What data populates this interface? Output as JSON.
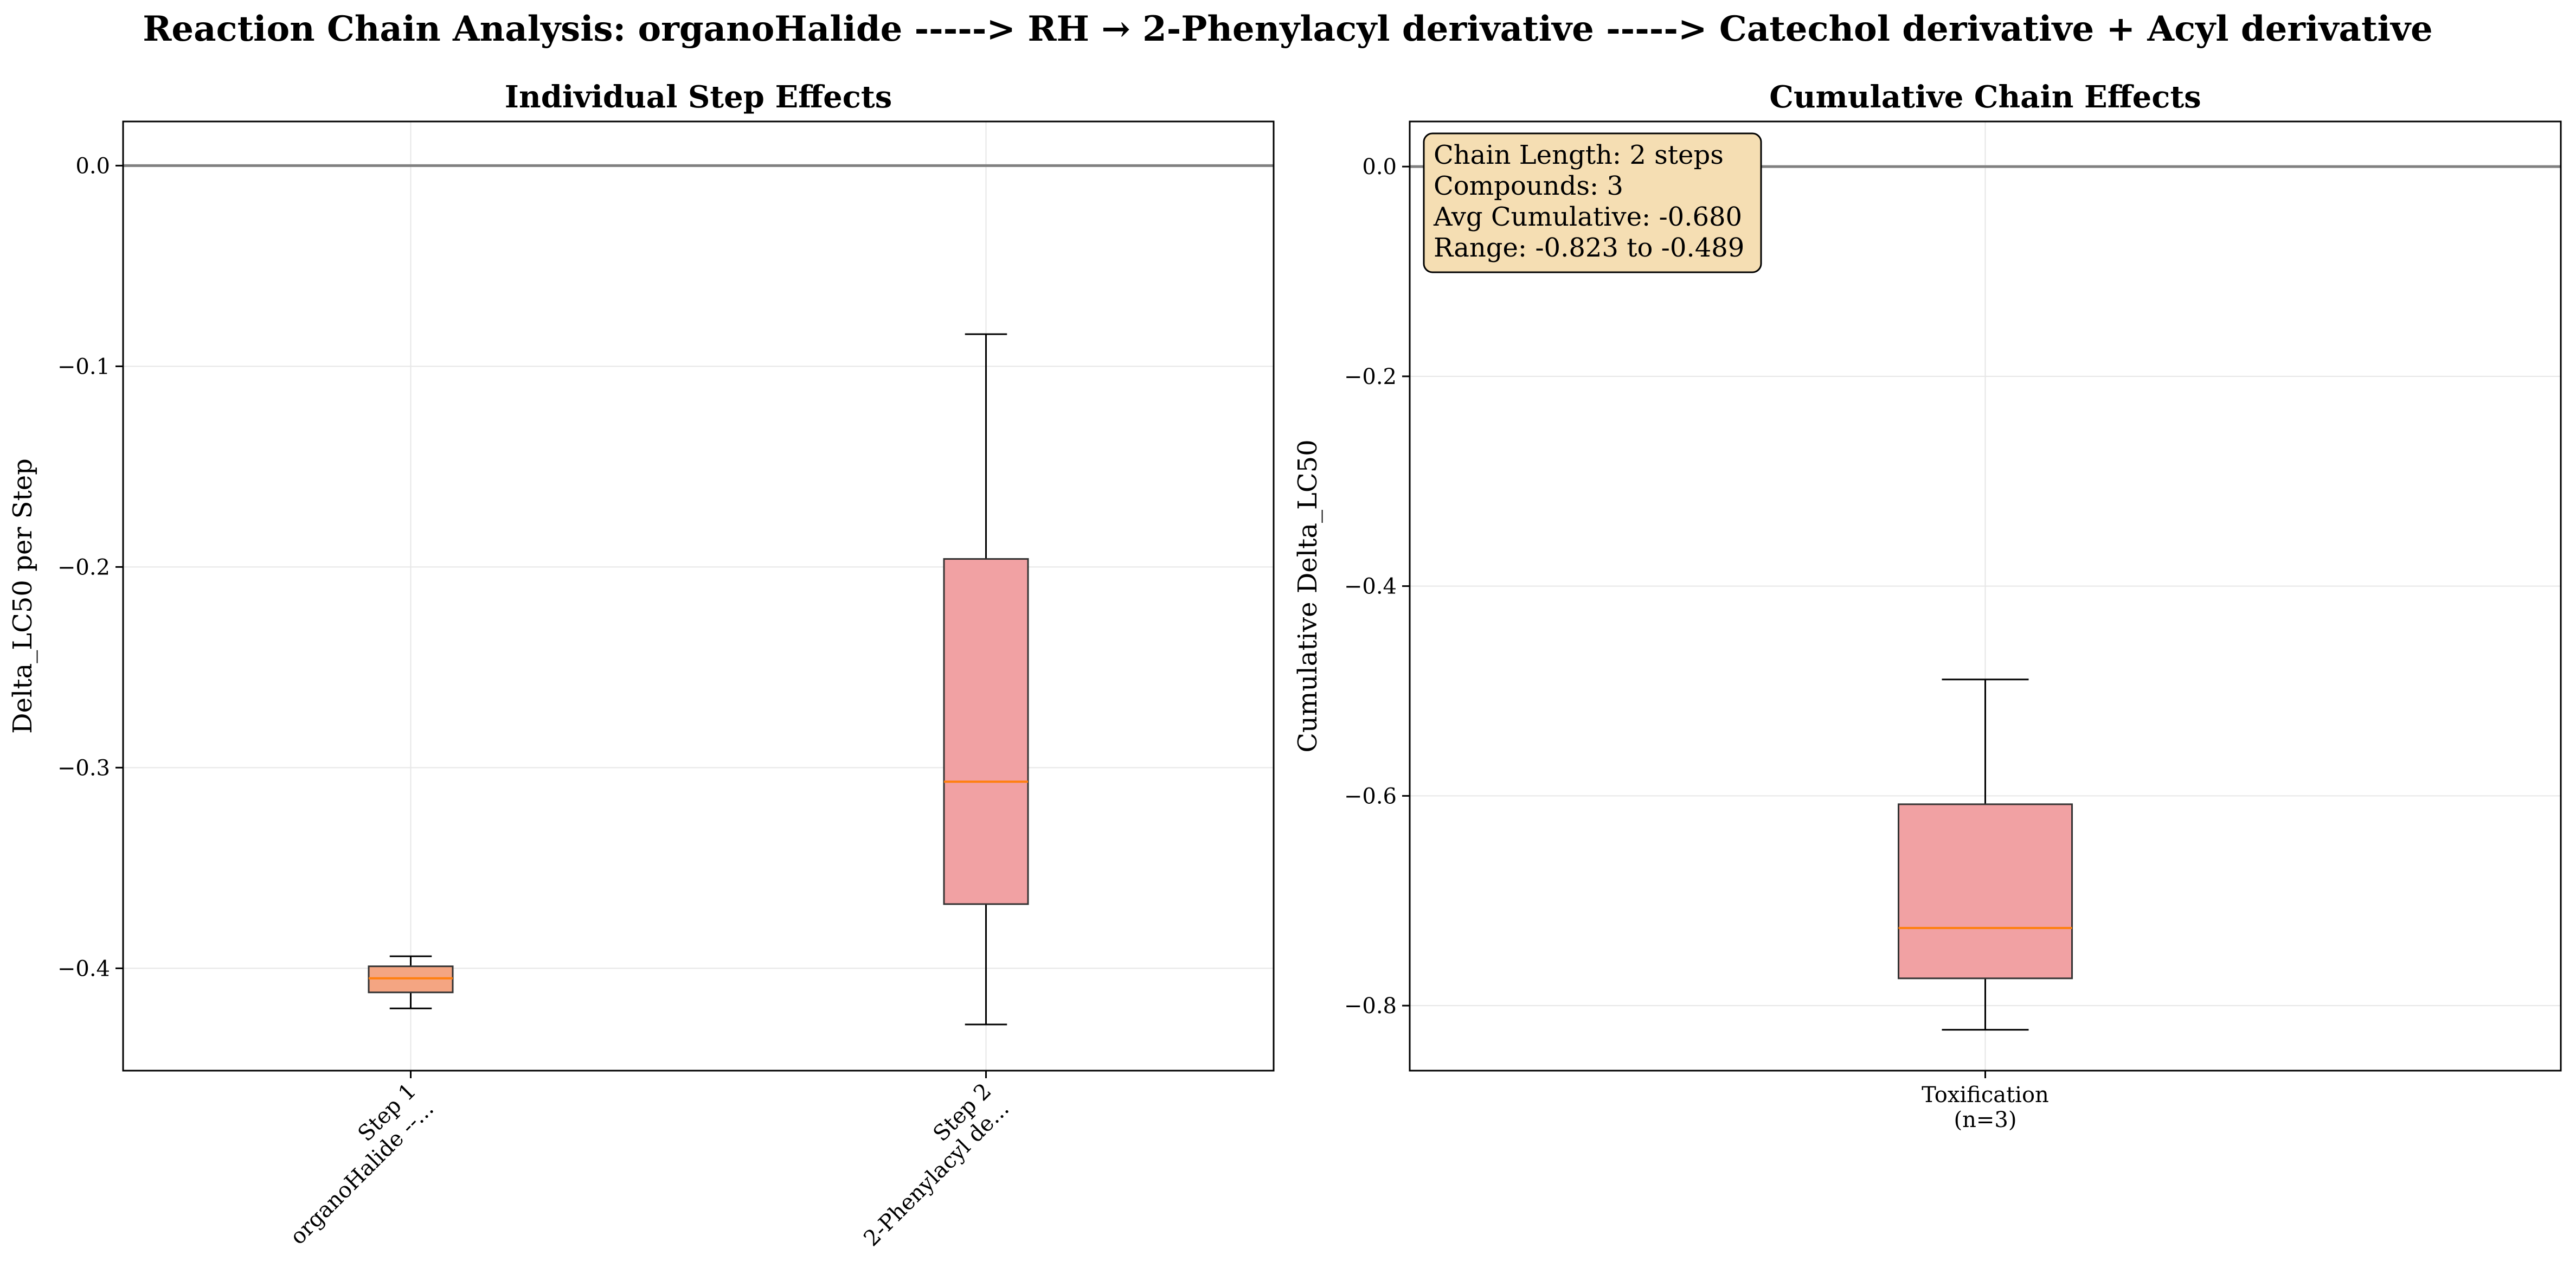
{
  "figure": {
    "suptitle": "Reaction Chain Analysis: organoHalide -----> RH → 2-Phenylacyl derivative -----> Catechol derivative + Acyl derivative"
  },
  "chart_data": [
    {
      "type": "box",
      "title": "Individual Step Effects",
      "xlabel": "",
      "ylabel": "Delta_LC50 per Step",
      "ylim": [
        -0.451,
        0.022
      ],
      "yticks": [
        0.0,
        -0.1,
        -0.2,
        -0.3,
        -0.4
      ],
      "ytick_labels": [
        "0.0",
        "−0.1",
        "−0.2",
        "−0.3",
        "−0.4"
      ],
      "reference_line": 0.0,
      "grid": true,
      "categories": [
        [
          "Step 1",
          "organoHalide --..."
        ],
        [
          "Step 2",
          "2-Phenylacyl de..."
        ]
      ],
      "xtick_rotation": 45,
      "boxes": [
        {
          "whisker_low": -0.42,
          "q1": -0.412,
          "median": -0.405,
          "q3": -0.399,
          "whisker_high": -0.394,
          "color": "#f4a582"
        },
        {
          "whisker_low": -0.428,
          "q1": -0.368,
          "median": -0.307,
          "q3": -0.196,
          "whisker_high": -0.084,
          "color": "#f1a1a3"
        }
      ]
    },
    {
      "type": "box",
      "title": "Cumulative Chain Effects",
      "xlabel": "",
      "ylabel": "Cumulative Delta_LC50",
      "ylim": [
        -0.862,
        0.043
      ],
      "yticks": [
        0.0,
        -0.2,
        -0.4,
        -0.6,
        -0.8
      ],
      "ytick_labels": [
        "0.0",
        "−0.2",
        "−0.4",
        "−0.6",
        "−0.8"
      ],
      "reference_line": 0.0,
      "grid": true,
      "categories": [
        [
          "Toxification",
          "(n=3)"
        ]
      ],
      "xtick_rotation": 0,
      "boxes": [
        {
          "whisker_low": -0.823,
          "q1": -0.774,
          "median": -0.726,
          "q3": -0.608,
          "whisker_high": -0.489,
          "color": "#f1a1a3"
        }
      ],
      "annotation": [
        "Chain Length: 2 steps",
        "Compounds: 3",
        "Avg Cumulative: -0.680",
        "Range: -0.823 to -0.489"
      ],
      "annotation_position": "top-left"
    }
  ],
  "colors": {
    "median": "#ff7f0e",
    "reference_line": "#808080",
    "grid": "#e6e6e6",
    "box_edge": "#333333",
    "annotation_bg": "#f5deb3"
  }
}
